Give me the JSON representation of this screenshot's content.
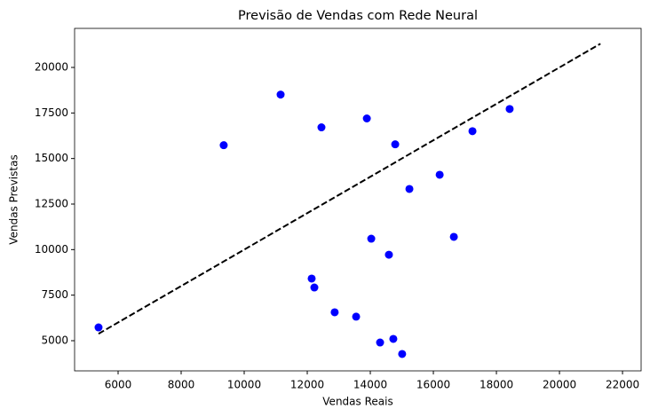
{
  "chart_data": {
    "type": "scatter",
    "title": "Previsão de Vendas com Rede Neural",
    "x_label": "Vendas Reais",
    "y_label": "Vendas Previstas",
    "x": [
      5380,
      9350,
      11155,
      12450,
      13890,
      14790,
      12140,
      12225,
      12870,
      13550,
      14030,
      14590,
      14310,
      14730,
      15010,
      15240,
      16200,
      16650,
      17240,
      18420
    ],
    "values": [
      5730,
      15730,
      18510,
      16710,
      17200,
      15780,
      8410,
      7920,
      6560,
      6320,
      10600,
      9720,
      4900,
      5100,
      4270,
      13330,
      14110,
      10700,
      16500,
      17720
    ],
    "color": "#0000ff",
    "reference_line": {
      "x": [
        5380,
        21300
      ],
      "values": [
        5380,
        21300
      ],
      "color": "#000000"
    },
    "xlim": [
      4620,
      22590
    ],
    "ylim": [
      3344,
      22143
    ],
    "xticks": [
      6000,
      8000,
      10000,
      12000,
      14000,
      16000,
      18000,
      20000,
      22000
    ],
    "yticks": [
      5000,
      7500,
      10000,
      12500,
      15000,
      17500,
      20000
    ]
  }
}
